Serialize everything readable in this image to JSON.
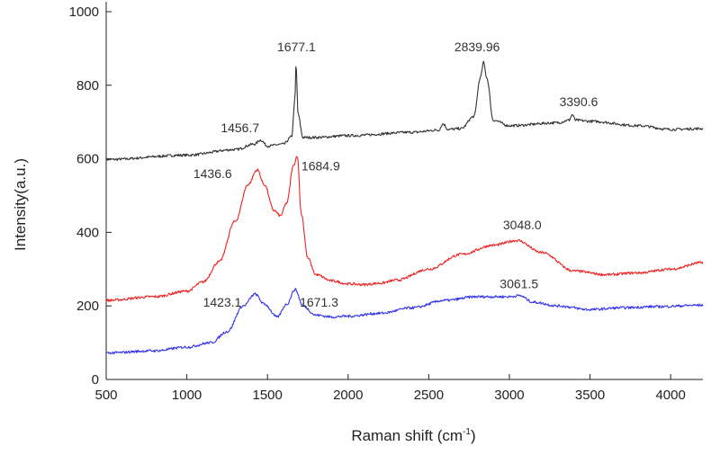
{
  "chart_data": {
    "type": "line",
    "title": "",
    "xlabel": "Raman shift (cm",
    "xlabel_sup": "-1",
    "xlabel_close": ")",
    "ylabel": "Intensity(a.u.)",
    "xlim": [
      500,
      4200
    ],
    "ylim": [
      0,
      1000
    ],
    "xticks": [
      500,
      1000,
      1500,
      2000,
      2500,
      3000,
      3500,
      4000
    ],
    "yticks": [
      0,
      200,
      400,
      600,
      800,
      1000
    ],
    "grid": false,
    "legend": "none",
    "series": [
      {
        "color": "#333333",
        "x": [
          500,
          1000,
          1300,
          1420,
          1456.7,
          1500,
          1600,
          1650,
          1670,
          1677.1,
          1690,
          1720,
          1800,
          2000,
          2400,
          2560,
          2590,
          2620,
          2700,
          2780,
          2820,
          2839.96,
          2860,
          2900,
          3000,
          3300,
          3370,
          3390.6,
          3410,
          3500,
          3800,
          4000,
          4200
        ],
        "y": [
          598,
          610,
          625,
          640,
          651,
          635,
          640,
          660,
          760,
          855,
          720,
          658,
          658,
          663,
          672,
          678,
          695,
          680,
          682,
          715,
          820,
          862,
          820,
          705,
          690,
          698,
          705,
          720,
          705,
          702,
          690,
          680,
          682
        ]
      },
      {
        "color": "#ee2222",
        "x": [
          500,
          800,
          1000,
          1100,
          1200,
          1300,
          1380,
          1436.6,
          1480,
          1540,
          1580,
          1620,
          1660,
          1684.9,
          1710,
          1750,
          1800,
          1900,
          2000,
          2100,
          2200,
          2300,
          2500,
          2700,
          2900,
          3048.0,
          3200,
          3400,
          3600,
          3800,
          4000,
          4200
        ],
        "y": [
          215,
          225,
          240,
          265,
          320,
          430,
          530,
          570,
          530,
          460,
          445,
          480,
          580,
          608,
          450,
          330,
          285,
          268,
          260,
          258,
          262,
          270,
          300,
          340,
          365,
          378,
          345,
          295,
          285,
          290,
          300,
          318
        ]
      },
      {
        "color": "#3333ee",
        "x": [
          500,
          800,
          1000,
          1150,
          1250,
          1350,
          1423.1,
          1480,
          1560,
          1620,
          1671.3,
          1720,
          1800,
          1900,
          2000,
          2200,
          2400,
          2600,
          2800,
          3000,
          3061.5,
          3150,
          3300,
          3500,
          3700,
          3900,
          4200
        ],
        "y": [
          72,
          78,
          88,
          100,
          130,
          200,
          232,
          205,
          170,
          205,
          245,
          200,
          175,
          170,
          172,
          180,
          195,
          215,
          225,
          225,
          228,
          210,
          200,
          190,
          195,
          198,
          202
        ]
      }
    ],
    "annotations": [
      {
        "text": "1677.1",
        "x": 1680,
        "y": 893
      },
      {
        "text": "2839.96",
        "x": 2800,
        "y": 893
      },
      {
        "text": "3390.6",
        "x": 3430,
        "y": 743
      },
      {
        "text": "1456.7",
        "x": 1330,
        "y": 672
      },
      {
        "text": "1436.6",
        "x": 1160,
        "y": 548
      },
      {
        "text": "1684.9",
        "x": 1830,
        "y": 568
      },
      {
        "text": "3048.0",
        "x": 3080,
        "y": 408
      },
      {
        "text": "1423.1",
        "x": 1220,
        "y": 198
      },
      {
        "text": "1671.3",
        "x": 1820,
        "y": 198
      },
      {
        "text": "3061.5",
        "x": 3060,
        "y": 248
      }
    ]
  }
}
